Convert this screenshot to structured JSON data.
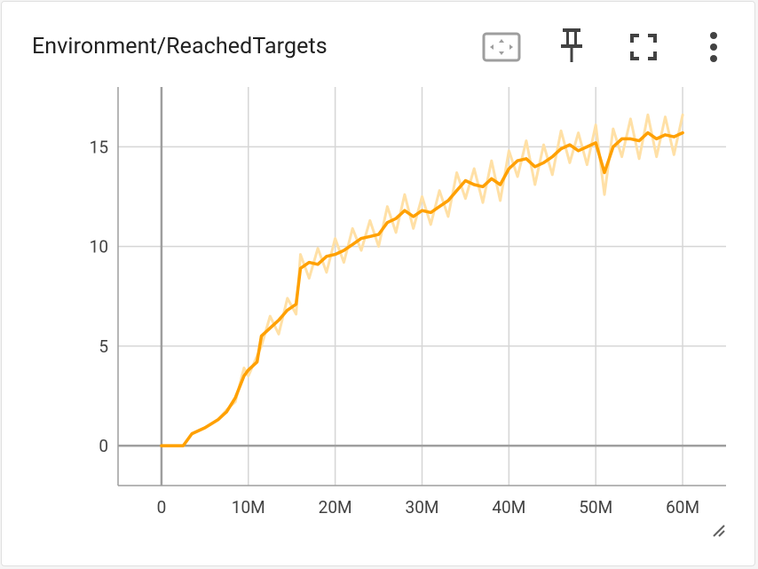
{
  "card": {
    "title": "Environment/ReachedTargets"
  },
  "toolbar": {
    "fit_icon": "fit-to-data-icon",
    "pin_icon": "pin-icon",
    "fullscreen_icon": "fullscreen-icon",
    "more_icon": "more-vert-icon"
  },
  "colors": {
    "series": "#ffa000",
    "series_raw": "#ffe0a6",
    "grid": "#d6d6d6",
    "axis": "#9e9e9e",
    "icon": "#424242"
  },
  "chart_data": {
    "type": "line",
    "title": "Environment/ReachedTargets",
    "xlabel": "",
    "ylabel": "",
    "xlim": [
      -5000000,
      65000000
    ],
    "ylim": [
      -2,
      18
    ],
    "x_ticks": [
      0,
      10000000,
      20000000,
      30000000,
      40000000,
      50000000,
      60000000
    ],
    "x_tick_labels": [
      "0",
      "10M",
      "20M",
      "30M",
      "40M",
      "50M",
      "60M"
    ],
    "y_ticks": [
      0,
      5,
      10,
      15
    ],
    "y_tick_labels": [
      "0",
      "5",
      "10",
      "15"
    ],
    "grid": true,
    "legend": "none",
    "series": [
      {
        "name": "ReachedTargets (smoothed)",
        "x": [
          0,
          2500000,
          3500000,
          5000000,
          6500000,
          7500000,
          8500000,
          9500000,
          10000000,
          11000000,
          11500000,
          12500000,
          13500000,
          14500000,
          15500000,
          16000000,
          17000000,
          18000000,
          19000000,
          20000000,
          21000000,
          22000000,
          23000000,
          24000000,
          25000000,
          26000000,
          27000000,
          28000000,
          29000000,
          30000000,
          31000000,
          32000000,
          33000000,
          34000000,
          35000000,
          36000000,
          37000000,
          38000000,
          39000000,
          40000000,
          41000000,
          42000000,
          43000000,
          44000000,
          45000000,
          46000000,
          47000000,
          48000000,
          49000000,
          50000000,
          51000000,
          52000000,
          53000000,
          54000000,
          55000000,
          56000000,
          57000000,
          58000000,
          59000000,
          60000000
        ],
        "values": [
          0,
          0,
          0.6,
          0.9,
          1.3,
          1.7,
          2.4,
          3.5,
          3.8,
          4.2,
          5.5,
          5.9,
          6.3,
          6.8,
          7.1,
          8.9,
          9.2,
          9.1,
          9.5,
          9.6,
          9.8,
          10.1,
          10.4,
          10.5,
          10.6,
          11.2,
          11.4,
          11.8,
          11.5,
          11.8,
          11.7,
          12.0,
          12.3,
          12.8,
          13.3,
          13.1,
          13.0,
          13.4,
          13.1,
          13.9,
          14.3,
          14.4,
          14.0,
          14.2,
          14.5,
          14.9,
          15.1,
          14.8,
          15.0,
          15.2,
          13.7,
          15.0,
          15.4,
          15.4,
          15.3,
          15.7,
          15.4,
          15.6,
          15.5,
          15.7
        ]
      },
      {
        "name": "ReachedTargets (raw)",
        "x": [
          0,
          2500000,
          3500000,
          5000000,
          6500000,
          7500000,
          8500000,
          9500000,
          10000000,
          11000000,
          11500000,
          12500000,
          13500000,
          14500000,
          15500000,
          16000000,
          17000000,
          18000000,
          19000000,
          20000000,
          21000000,
          22000000,
          23000000,
          24000000,
          25000000,
          26000000,
          27000000,
          28000000,
          29000000,
          30000000,
          31000000,
          32000000,
          33000000,
          34000000,
          35000000,
          36000000,
          37000000,
          38000000,
          39000000,
          40000000,
          41000000,
          42000000,
          43000000,
          44000000,
          45000000,
          46000000,
          47000000,
          48000000,
          49000000,
          50000000,
          51000000,
          52000000,
          53000000,
          54000000,
          55000000,
          56000000,
          57000000,
          58000000,
          59000000,
          60000000
        ],
        "values": [
          0,
          0,
          0.6,
          0.9,
          1.3,
          1.8,
          2.2,
          3.9,
          3.5,
          4.5,
          5.0,
          6.5,
          5.6,
          7.4,
          6.6,
          9.6,
          8.4,
          9.9,
          8.7,
          10.4,
          9.2,
          10.9,
          9.8,
          11.3,
          10.0,
          12.0,
          10.7,
          12.6,
          10.9,
          12.5,
          11.1,
          12.8,
          11.5,
          13.7,
          12.4,
          13.9,
          12.2,
          14.3,
          12.3,
          14.8,
          13.5,
          15.3,
          13.1,
          15.1,
          13.6,
          15.8,
          14.2,
          15.7,
          14.1,
          16.1,
          12.6,
          15.9,
          14.5,
          16.4,
          14.4,
          16.6,
          14.5,
          16.5,
          14.6,
          16.6
        ]
      }
    ]
  }
}
